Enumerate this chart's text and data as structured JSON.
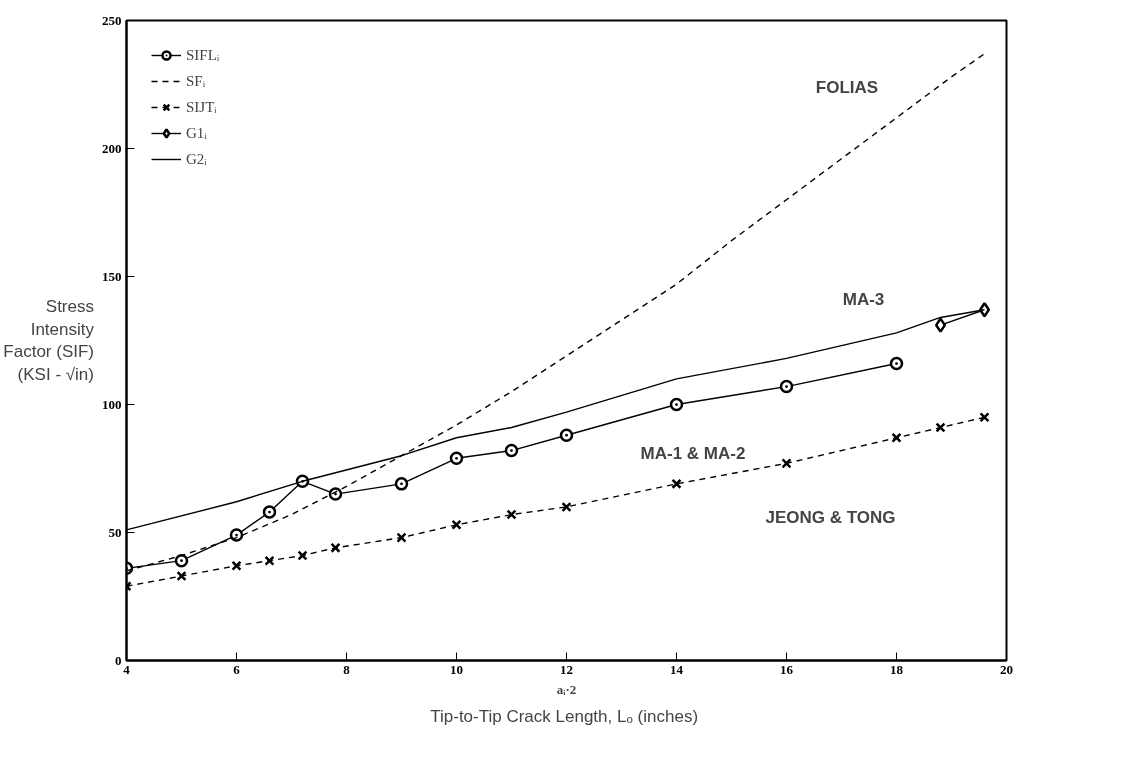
{
  "chart_data": {
    "type": "line",
    "xlabel": "aᵢ·2",
    "ylabel": "Stress Intensity Factor (SIF) (KSI - √in)",
    "xlim": [
      4,
      20
    ],
    "ylim": [
      0,
      250
    ],
    "xticks": [
      4,
      6,
      8,
      10,
      12,
      14,
      16,
      18,
      20
    ],
    "yticks": [
      0,
      50,
      100,
      150,
      200,
      250
    ],
    "grid": false,
    "legend": "top left",
    "series": [
      {
        "name": "SIFLᵢ",
        "color": "#000000",
        "marker": "circle",
        "line_style": "solid",
        "x": [
          4,
          5,
          6,
          6.6,
          7.2,
          7.8,
          9,
          10,
          11,
          12,
          14,
          16,
          18
        ],
        "values": [
          36,
          39,
          49,
          58,
          70,
          65,
          69,
          79,
          82,
          88,
          100,
          107,
          116
        ]
      },
      {
        "name": "SFᵢ",
        "color": "#000000",
        "marker": "none",
        "line_style": "dashed",
        "x": [
          4,
          5,
          6,
          7,
          8,
          9,
          10,
          11,
          12,
          13,
          14,
          15,
          16,
          17,
          18,
          19,
          19.6
        ],
        "values": [
          35,
          41,
          48,
          57,
          68,
          80,
          92,
          105,
          119,
          133,
          147,
          164,
          180,
          196,
          212,
          228,
          237
        ]
      },
      {
        "name": "SIJTᵢ",
        "color": "#000000",
        "marker": "cross",
        "line_style": "dashed",
        "x": [
          4,
          5,
          6,
          6.6,
          7.2,
          7.8,
          9,
          10,
          11,
          12,
          14,
          16,
          18,
          18.8,
          19.6
        ],
        "values": [
          29,
          33,
          37,
          39,
          41,
          44,
          48,
          53,
          57,
          60,
          69,
          77,
          87,
          91,
          95
        ]
      },
      {
        "name": "G1ᵢ",
        "color": "#000000",
        "marker": "diamond",
        "line_style": "solid",
        "x": [
          18.8,
          19.6
        ],
        "values": [
          131,
          137
        ]
      },
      {
        "name": "G2ᵢ",
        "color": "#000000",
        "marker": "none",
        "line_style": "solid",
        "x": [
          4,
          6,
          7.2,
          9,
          10,
          11,
          12,
          14,
          16,
          18,
          18.8,
          19.6
        ],
        "values": [
          51,
          62,
          70,
          80,
          87,
          91,
          97,
          110,
          118,
          128,
          134,
          137
        ]
      }
    ],
    "annotations": [
      "FOLIAS",
      "MA-3",
      "MA-1 & MA-2",
      "JEONG & TONG",
      "Tip-to-Tip Crack Length, Lₒ  (inches)"
    ]
  }
}
